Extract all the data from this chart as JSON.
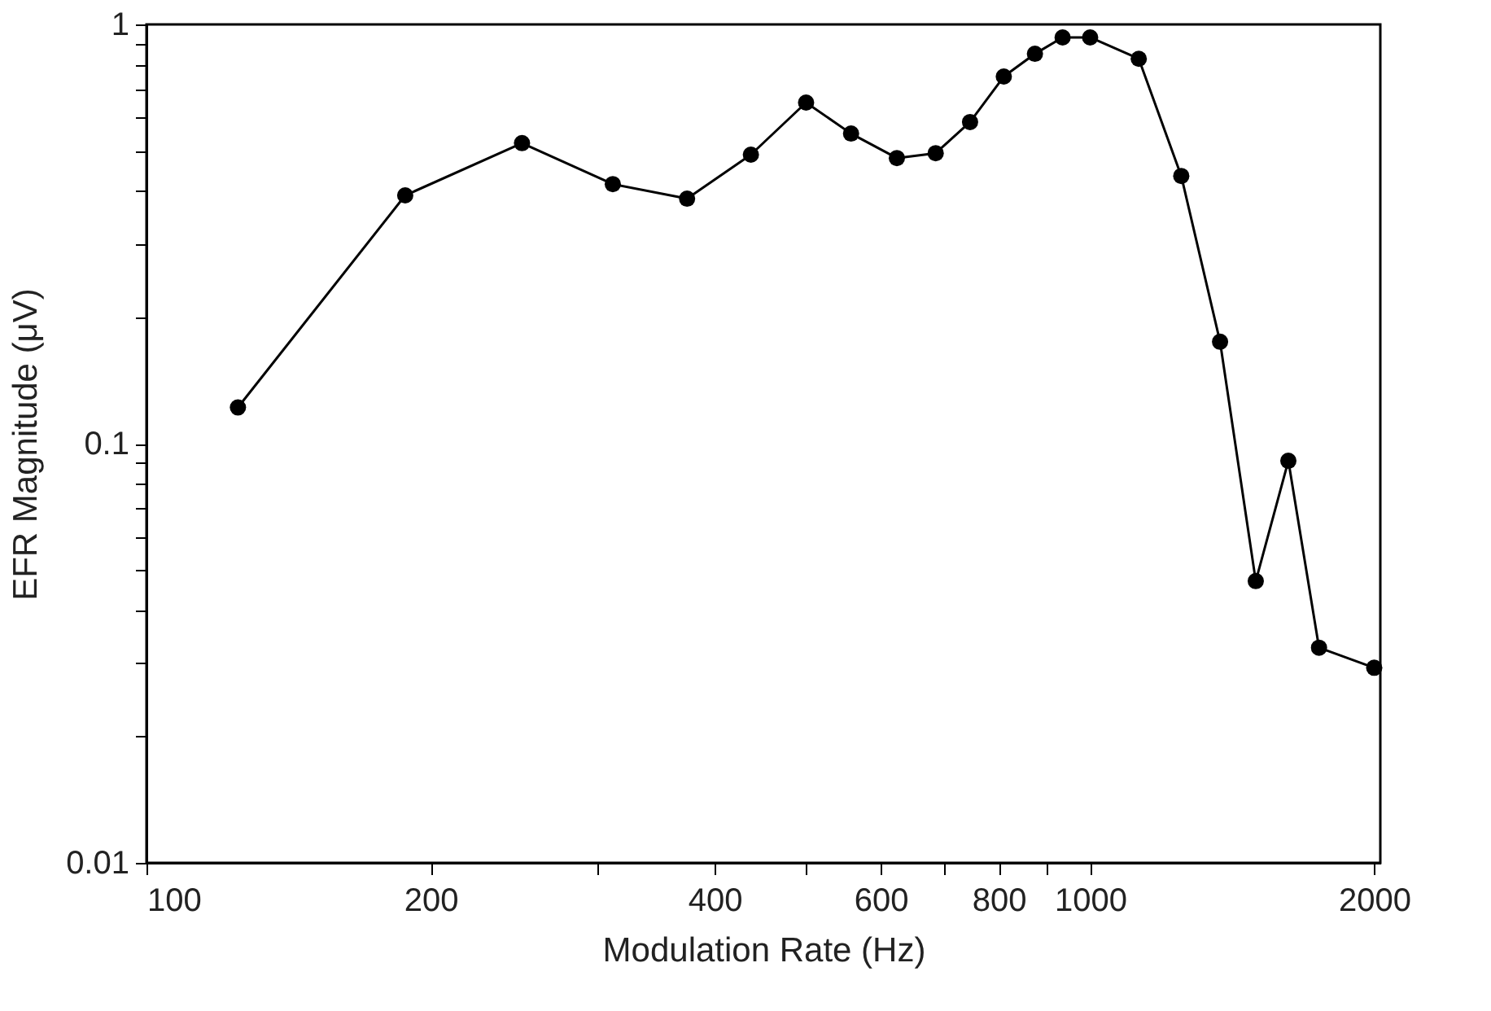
{
  "chart_data": {
    "type": "line",
    "xlabel": "Modulation Rate (Hz)",
    "ylabel": "EFR Magnitude (μV)",
    "log": "xy",
    "grid": false,
    "marker": "circle",
    "line_style": "solid",
    "x": [
      125,
      188,
      250,
      312,
      374,
      437,
      500,
      558,
      624,
      686,
      746,
      810,
      874,
      935,
      1000,
      1126,
      1249,
      1373,
      1498,
      1622,
      1748,
      2000
    ],
    "series": [
      {
        "color": "#000000",
        "values": [
          0.122,
          0.391,
          0.521,
          0.416,
          0.384,
          0.489,
          0.651,
          0.549,
          0.48,
          0.493,
          0.585,
          0.751,
          0.851,
          0.931,
          0.931,
          0.828,
          0.435,
          0.175,
          0.047,
          0.091,
          0.0326,
          0.0292
        ]
      }
    ],
    "xlim": [
      100,
      2030
    ],
    "xticks": [
      100,
      200,
      {
        "value": 300,
        "label": null
      },
      400,
      {
        "value": 500,
        "label": null
      },
      600,
      {
        "value": 700,
        "label": null
      },
      800,
      {
        "value": 900,
        "label": null
      },
      1000,
      2000
    ],
    "ylim": [
      0.01,
      1
    ],
    "yticks": [
      0.01,
      {
        "value": 0.02,
        "label": null
      },
      {
        "value": 0.03,
        "label": null
      },
      {
        "value": 0.04,
        "label": null
      },
      {
        "value": 0.05,
        "label": null
      },
      {
        "value": 0.06,
        "label": null
      },
      {
        "value": 0.07,
        "label": null
      },
      {
        "value": 0.08,
        "label": null
      },
      {
        "value": 0.09,
        "label": null
      },
      0.1,
      {
        "value": 0.2,
        "label": null
      },
      {
        "value": 0.3,
        "label": null
      },
      {
        "value": 0.4,
        "label": null
      },
      {
        "value": 0.5,
        "label": null
      },
      {
        "value": 0.6,
        "label": null
      },
      {
        "value": 0.7,
        "label": null
      },
      {
        "value": 0.8,
        "label": null
      },
      {
        "value": 0.9,
        "label": null
      },
      1
    ]
  }
}
